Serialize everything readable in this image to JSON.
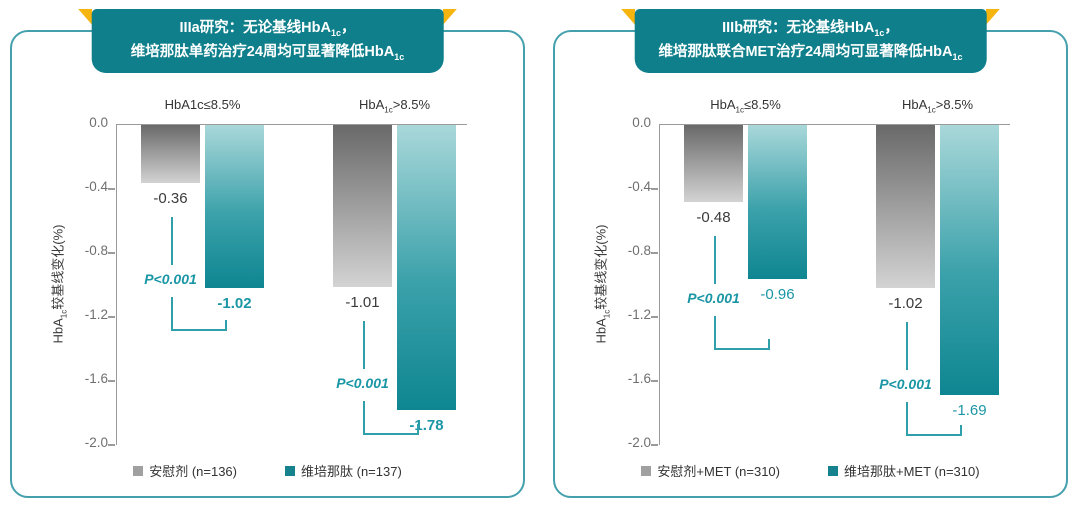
{
  "colors": {
    "banner_teal": "#0e7f8b",
    "panel_border_teal": "#45a0ad",
    "ribbon_yellow": "#f6b40f",
    "bar_gray_top": "#696969",
    "bar_gray_bottom": "#d3d3d3",
    "bar_teal_top": "#a9d8da",
    "bar_teal_bottom": "#0e8691",
    "stat_teal": "#1b96a5",
    "axis_gray": "#9b9b9b"
  },
  "chart_data": [
    {
      "type": "bar",
      "title_lines": [
        "IIIa研究：无论基线HbA_{1c}，",
        "维培那肽单药治疗24周均可显著降低HbA_{1c}"
      ],
      "categories": [
        "HbA1c≤8.5%",
        "HbA_{1c}>8.5%"
      ],
      "series": [
        {
          "name": "安慰剂 (n=136)",
          "role": "placebo",
          "values": [
            -0.36,
            -1.01
          ]
        },
        {
          "name": "维培那肽 (n=137)",
          "role": "drug",
          "values": [
            -1.02,
            -1.78
          ]
        }
      ],
      "p_values": [
        "P<0.001",
        "P<0.001"
      ],
      "ylabel": "HbA_{1c}较基线变化(%)",
      "yticks": [
        0,
        -0.4,
        -0.8,
        -1.2,
        -1.6,
        -2
      ],
      "ylim": [
        0,
        -2
      ],
      "legend_position": "bottom",
      "drug_label_bold": true
    },
    {
      "type": "bar",
      "title_lines": [
        "IIIb研究：无论基线HbA_{1c}，",
        "维培那肽联合MET治疗24周均可显著降低HbA_{1c}"
      ],
      "categories": [
        "HbA_{1c}≤8.5%",
        "HbA_{1c}>8.5%"
      ],
      "series": [
        {
          "name": "安慰剂+MET (n=310)",
          "role": "placebo",
          "values": [
            -0.48,
            -1.02
          ]
        },
        {
          "name": "维培那肽+MET (n=310)",
          "role": "drug",
          "values": [
            -0.96,
            -1.69
          ]
        }
      ],
      "p_values": [
        "P<0.001",
        "P<0.001"
      ],
      "ylabel": "HbA_{1c}较基线变化(%)",
      "yticks": [
        0,
        -0.4,
        -0.8,
        -1.2,
        -1.6,
        -2
      ],
      "ylim": [
        0,
        -2
      ],
      "legend_position": "bottom",
      "drug_label_bold": false
    }
  ]
}
